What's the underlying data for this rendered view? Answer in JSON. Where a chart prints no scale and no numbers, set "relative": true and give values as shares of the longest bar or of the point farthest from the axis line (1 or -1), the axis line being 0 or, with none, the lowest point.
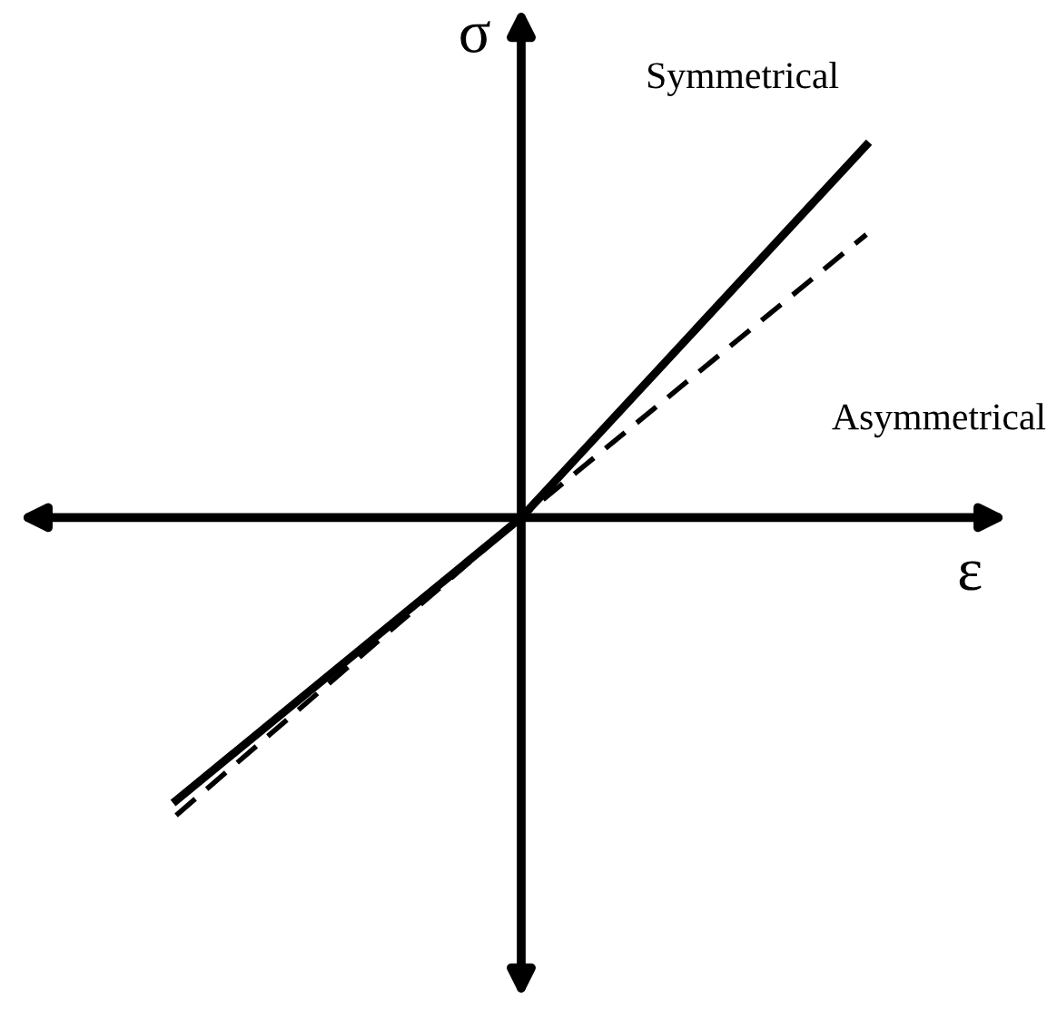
{
  "chart_data": {
    "type": "line",
    "relative": true,
    "xlabel": "ε",
    "ylabel": "σ",
    "categories": [
      null,
      null,
      null
    ],
    "series": [
      {
        "name": "Symmetrical",
        "color": "#000000",
        "line_style": "solid",
        "values": [
          -0.76,
          0,
          1
        ]
      },
      {
        "name": "Asymmetrical",
        "color": "#000000",
        "line_style": "dashed",
        "values": [
          -0.8,
          0,
          0.76
        ]
      }
    ]
  }
}
